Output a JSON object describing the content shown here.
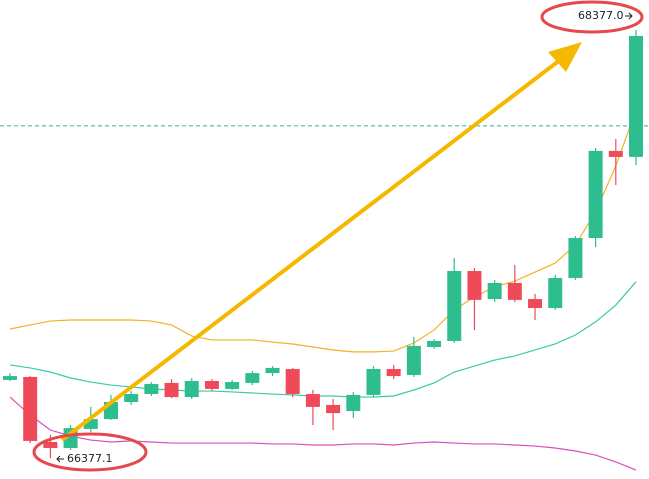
{
  "chart_data": {
    "type": "candlestick",
    "ylim": [
      66279.1,
      68517.3
    ],
    "up_color": "#2ebd8f",
    "down_color": "#ef4a5a",
    "categories": [
      null,
      null,
      null,
      null,
      null,
      null,
      null,
      null,
      null,
      null,
      null,
      null,
      null,
      null,
      null,
      null,
      null,
      null,
      null,
      null,
      null,
      null,
      null,
      null,
      null,
      null,
      null,
      null,
      null,
      null,
      null,
      null
    ],
    "open": [
      66742,
      66756,
      66452,
      66424,
      66513,
      66559,
      66639,
      66676,
      66728,
      66662,
      66737,
      66700,
      66728,
      66774,
      66793,
      66676,
      66625,
      66597,
      66672,
      66793,
      66765,
      66896,
      66924,
      67251,
      67120,
      67195,
      67120,
      67078,
      67218,
      67405,
      67812,
      67784
    ],
    "high": [
      66774,
      66760,
      66485,
      66531,
      66616,
      66672,
      66690,
      66732,
      66746,
      66751,
      66746,
      66742,
      66784,
      66807,
      66798,
      66695,
      66653,
      66686,
      66807,
      66812,
      66943,
      66933,
      67312,
      67265,
      67209,
      67279,
      67144,
      67233,
      67414,
      67826,
      67868,
      68377.0
    ],
    "low": [
      66737,
      66447,
      66377.1,
      66415,
      66499,
      66555,
      66625,
      66667,
      66657,
      66653,
      66690,
      66695,
      66718,
      66760,
      66662,
      66531,
      66508,
      66564,
      66662,
      66746,
      66756,
      66887,
      66915,
      66975,
      67106,
      67106,
      67022,
      67069,
      67209,
      67363,
      67653,
      67746
    ],
    "close": [
      66760,
      66457,
      66424,
      66517,
      66559,
      66639,
      66676,
      66723,
      66662,
      66737,
      66700,
      66732,
      66774,
      66798,
      66676,
      66616,
      66587,
      66672,
      66793,
      66760,
      66901,
      66924,
      67251,
      67116,
      67195,
      67116,
      67078,
      67218,
      67405,
      67812,
      67784,
      68349
    ],
    "lines": [
      {
        "color": "#f0b323",
        "values": [
          66980,
          66999,
          67017,
          67022,
          67022,
          67022,
          67022,
          67017,
          66999,
          66947,
          66929,
          66929,
          66929,
          66919,
          66910,
          66896,
          66882,
          66873,
          66873,
          66877,
          66915,
          66975,
          67069,
          67130,
          67176,
          67204,
          67246,
          67288,
          67373,
          67527,
          67742,
          68003
        ]
      },
      {
        "color": "#3cc9a6",
        "values": [
          66812,
          66798,
          66779,
          66751,
          66732,
          66718,
          66709,
          66700,
          66695,
          66690,
          66690,
          66686,
          66681,
          66676,
          66672,
          66667,
          66667,
          66662,
          66662,
          66667,
          66695,
          66728,
          66779,
          66807,
          66835,
          66854,
          66882,
          66910,
          66952,
          67013,
          67092,
          67200
        ]
      },
      {
        "color": "#d94fc0",
        "values": [
          66662,
          66578,
          66508,
          66480,
          66461,
          66452,
          66457,
          66452,
          66447,
          66447,
          66447,
          66447,
          66447,
          66443,
          66443,
          66438,
          66438,
          66443,
          66443,
          66438,
          66447,
          66452,
          66447,
          66443,
          66443,
          66438,
          66433,
          66424,
          66410,
          66391,
          66359,
          66321
        ]
      }
    ],
    "hline": {
      "value": 67929,
      "color": "#3aa89a"
    },
    "annotations": [
      "68377.0",
      "66377.1"
    ]
  }
}
